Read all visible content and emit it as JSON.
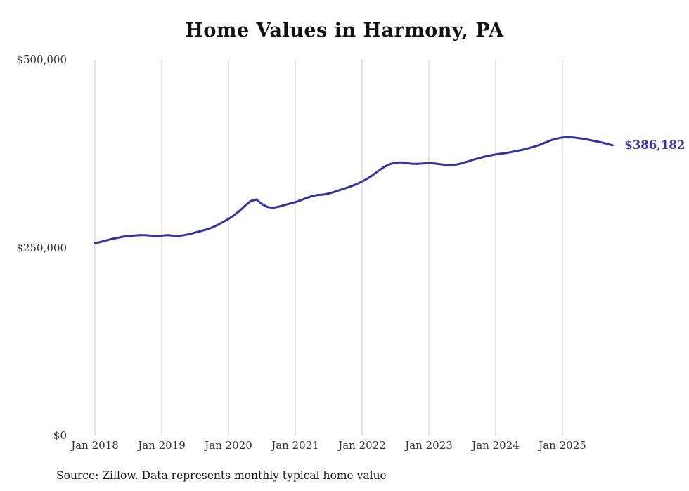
{
  "chart_data": {
    "type": "line",
    "title": "Home Values in Harmony, PA",
    "source": "Source: Zillow. Data represents monthly typical home value",
    "series_name": "Monthly typical home value",
    "frequency": "monthly",
    "x_start": "Jan 2018",
    "x_end": "Oct 2025",
    "x_ticks": [
      "Jan 2018",
      "Jan 2019",
      "Jan 2020",
      "Jan 2021",
      "Jan 2022",
      "Jan 2023",
      "Jan 2024",
      "Jan 2025"
    ],
    "y_ticks": [
      {
        "label": "$0",
        "value": 0
      },
      {
        "label": "$250,000",
        "value": 250000
      },
      {
        "label": "$500,000",
        "value": 500000
      }
    ],
    "ylim": [
      0,
      500000
    ],
    "grid": "vertical-only",
    "legend": "none",
    "end_label": "$386,182",
    "latest_value": 386182,
    "line_color": "#3432a8",
    "grid_color": "#cccccc",
    "values": [
      256000,
      257500,
      259500,
      261500,
      263000,
      264500,
      265500,
      266000,
      266500,
      266500,
      266000,
      265500,
      266000,
      266500,
      266000,
      265500,
      266500,
      268000,
      270000,
      272000,
      274000,
      276500,
      280000,
      284000,
      288000,
      293000,
      299000,
      306000,
      312000,
      314000,
      308000,
      304000,
      303000,
      304500,
      306500,
      308500,
      310500,
      313000,
      316000,
      318500,
      320000,
      320500,
      322000,
      324000,
      326500,
      329000,
      331500,
      334500,
      338000,
      342000,
      347000,
      352500,
      357500,
      361000,
      363000,
      363500,
      362500,
      361500,
      361500,
      362000,
      362500,
      362000,
      361000,
      360000,
      359500,
      360500,
      362500,
      364500,
      367000,
      369000,
      371000,
      372500,
      374000,
      375000,
      376000,
      377500,
      379000,
      380500,
      382500,
      384500,
      387000,
      390000,
      393000,
      395000,
      396500,
      397000,
      396500,
      395500,
      394500,
      393000,
      391500,
      390000,
      388000,
      386182
    ]
  }
}
